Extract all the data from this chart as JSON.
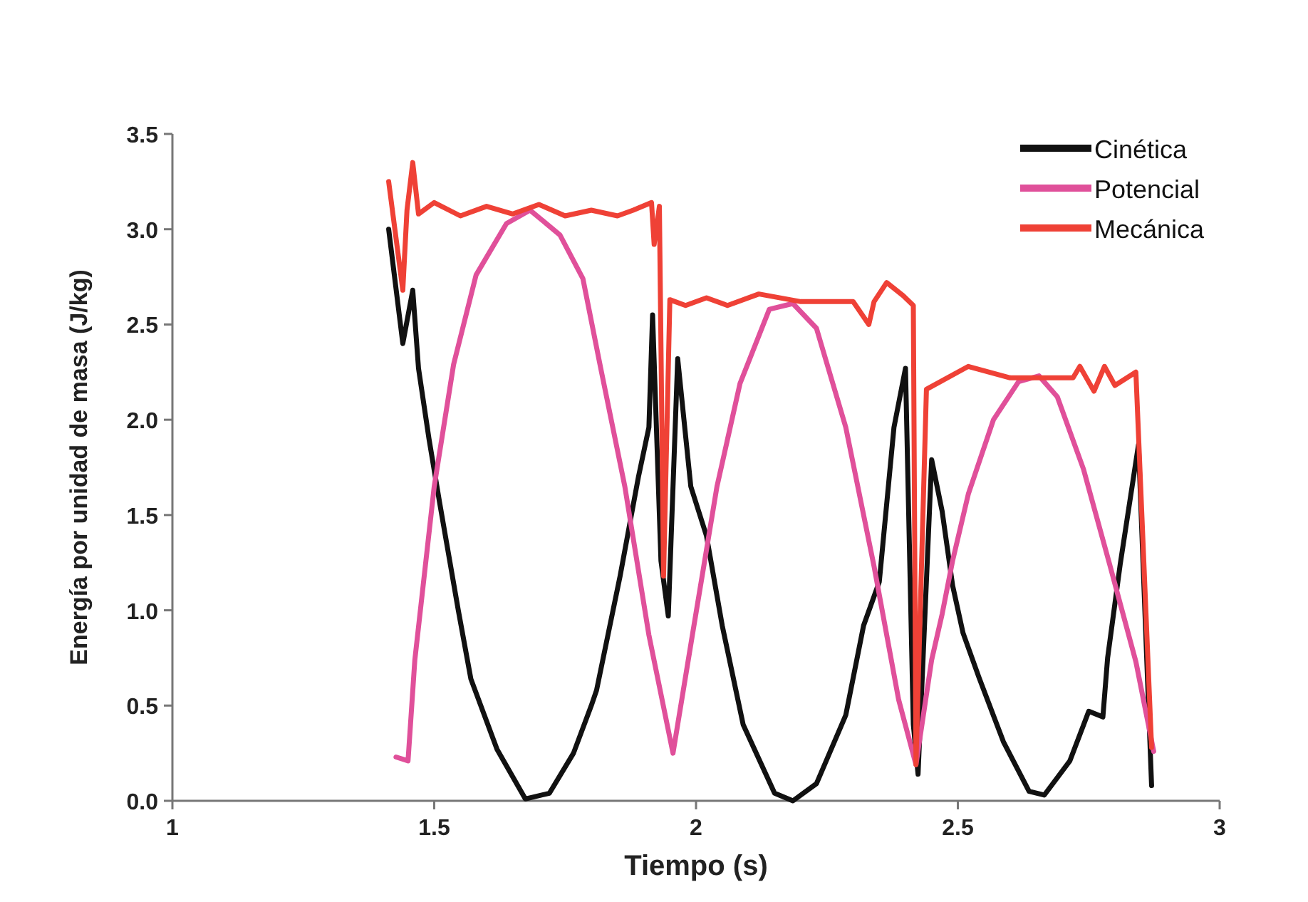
{
  "chart_data": {
    "type": "line",
    "xlabel": "Tiempo (s)",
    "ylabel": "Energía por unidad de masa (J/kg)",
    "xlim": [
      1,
      3
    ],
    "xticks": [
      1,
      1.5,
      2,
      2.5,
      3
    ],
    "ylim": [
      0,
      3.5
    ],
    "yticks": [
      {
        "value": 0,
        "label": "0.0"
      },
      {
        "value": 0.5,
        "label": "0.5"
      },
      {
        "value": 1,
        "label": "1.0"
      },
      {
        "value": 1.5,
        "label": "1.5"
      },
      {
        "value": 2,
        "label": "2.0"
      },
      {
        "value": 2.5,
        "label": "2.5"
      },
      {
        "value": 3,
        "label": "3.0"
      },
      {
        "value": 3.5,
        "label": "3.5"
      }
    ],
    "grid": false,
    "legend": "top right",
    "marker": "none",
    "line_style": "solid",
    "series": [
      {
        "name": "Cinética",
        "color": "#111111",
        "x": [
          1.413,
          1.44,
          1.459,
          1.47,
          1.49,
          1.51,
          1.546,
          1.57,
          1.62,
          1.674,
          1.72,
          1.766,
          1.8,
          1.81,
          1.855,
          1.89,
          1.91,
          1.917,
          1.933,
          1.947,
          1.965,
          1.99,
          2.02,
          2.05,
          2.09,
          2.15,
          2.185,
          2.23,
          2.286,
          2.32,
          2.35,
          2.378,
          2.4,
          2.415,
          2.424,
          2.45,
          2.47,
          2.49,
          2.51,
          2.54,
          2.587,
          2.636,
          2.665,
          2.714,
          2.75,
          2.777,
          2.786,
          2.81,
          2.845,
          2.87
        ],
        "values": [
          3.0,
          2.4,
          2.68,
          2.27,
          1.9,
          1.57,
          1.0,
          0.64,
          0.27,
          0.01,
          0.04,
          0.25,
          0.5,
          0.58,
          1.18,
          1.7,
          1.96,
          2.55,
          1.26,
          0.97,
          2.32,
          1.65,
          1.39,
          0.92,
          0.4,
          0.04,
          0.0,
          0.09,
          0.45,
          0.92,
          1.15,
          1.96,
          2.27,
          0.4,
          0.14,
          1.79,
          1.52,
          1.13,
          0.88,
          0.65,
          0.31,
          0.05,
          0.03,
          0.21,
          0.47,
          0.44,
          0.75,
          1.24,
          1.87,
          0.08
        ]
      },
      {
        "name": "Potencial",
        "color": "#e0509a",
        "x": [
          1.427,
          1.45,
          1.463,
          1.5,
          1.537,
          1.58,
          1.638,
          1.683,
          1.74,
          1.784,
          1.818,
          1.864,
          1.91,
          1.956,
          1.993,
          2.04,
          2.084,
          2.14,
          2.185,
          2.23,
          2.286,
          2.34,
          2.387,
          2.42,
          2.45,
          2.47,
          2.49,
          2.52,
          2.568,
          2.616,
          2.655,
          2.69,
          2.74,
          2.79,
          2.84,
          2.874
        ],
        "values": [
          0.23,
          0.21,
          0.74,
          1.65,
          2.29,
          2.76,
          3.03,
          3.1,
          2.97,
          2.74,
          2.27,
          1.65,
          0.87,
          0.25,
          0.87,
          1.65,
          2.19,
          2.58,
          2.61,
          2.48,
          1.96,
          1.23,
          0.53,
          0.19,
          0.74,
          0.98,
          1.26,
          1.61,
          2.0,
          2.2,
          2.23,
          2.12,
          1.74,
          1.24,
          0.73,
          0.26
        ]
      },
      {
        "name": "Mecánica",
        "color": "#ef4136",
        "x": [
          1.413,
          1.44,
          1.448,
          1.459,
          1.47,
          1.5,
          1.55,
          1.6,
          1.65,
          1.7,
          1.75,
          1.8,
          1.85,
          1.88,
          1.915,
          1.92,
          1.93,
          1.938,
          1.95,
          1.98,
          2.02,
          2.06,
          2.12,
          2.2,
          2.3,
          2.33,
          2.34,
          2.364,
          2.396,
          2.415,
          2.42,
          2.44,
          2.52,
          2.6,
          2.72,
          2.733,
          2.76,
          2.78,
          2.8,
          2.84,
          2.87
        ],
        "values": [
          3.25,
          2.68,
          3.1,
          3.35,
          3.08,
          3.14,
          3.07,
          3.12,
          3.08,
          3.13,
          3.07,
          3.1,
          3.07,
          3.1,
          3.14,
          2.92,
          3.12,
          1.18,
          2.63,
          2.6,
          2.64,
          2.6,
          2.66,
          2.62,
          2.62,
          2.5,
          2.62,
          2.72,
          2.65,
          2.6,
          0.19,
          2.16,
          2.28,
          2.22,
          2.22,
          2.28,
          2.15,
          2.28,
          2.18,
          2.25,
          0.28
        ]
      }
    ]
  }
}
